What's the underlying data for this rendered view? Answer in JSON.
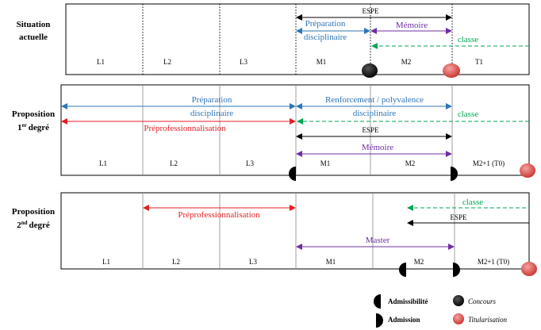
{
  "rows": {
    "situation": {
      "title_line1": "Situation",
      "title_line2": "actuelle",
      "years": [
        "L1",
        "L2",
        "L3",
        "M1",
        "M2",
        "T1"
      ],
      "espe_label": "ESPE",
      "preparation_line1": "Préparation",
      "preparation_line2": "disciplinaire",
      "memoire_label": "Mémoire",
      "classe_label": "classe"
    },
    "premier_degre": {
      "title_line1": "Proposition",
      "title_line2_number": "1",
      "title_line2_sup": "er",
      "title_line2_rest": "degré",
      "years": [
        "L1",
        "L2",
        "L3",
        "M1",
        "M2",
        "M2+1 (T0)"
      ],
      "preparation_line1": "Préparation",
      "preparation_line2": "disciplinaire",
      "renforcement_line1": "Renforcement / polyvalence",
      "renforcement_line2": "disciplinaire",
      "prepro_label": "Préprofessionnalisation",
      "classe_label": "classe",
      "espe_label": "ESPE",
      "memoire_label": "Mémoire"
    },
    "second_degre": {
      "title_line1": "Proposition",
      "title_line2_number": "2",
      "title_line2_sup": "nd",
      "title_line2_rest": "degré",
      "years": [
        "L1",
        "L2",
        "L3",
        "M1",
        "M2",
        "M2+1 (T0)"
      ],
      "classe_label": "classe",
      "prepro_label": "Préprofessionnalisation",
      "espe_label": "ESPE",
      "master_label": "Master"
    }
  },
  "legend": {
    "admissibilite": "Admissibilité",
    "admission": "Admission",
    "concours": "Concours",
    "titularisation": "Titularisation"
  },
  "colors": {
    "blue": "#2e75b6",
    "red": "#e31e24",
    "purple": "#7030a0",
    "green": "#00a651",
    "black": "#000000",
    "marker_red": "#d9534f"
  }
}
